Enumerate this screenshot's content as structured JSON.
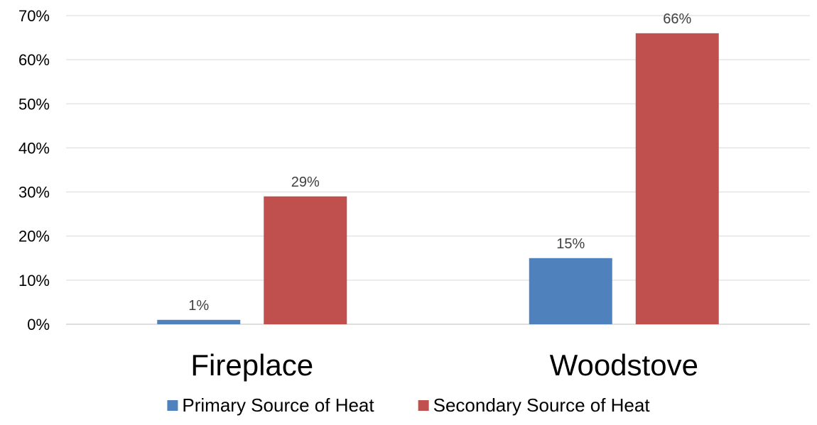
{
  "chart_data": {
    "type": "bar",
    "title": "",
    "xlabel": "",
    "ylabel": "",
    "categories": [
      "Fireplace",
      "Woodstove"
    ],
    "series": [
      {
        "name": "Primary Source of Heat",
        "color": "#4F81BD",
        "values": [
          1,
          15
        ],
        "labels": [
          "1%",
          "15%"
        ]
      },
      {
        "name": "Secondary Source of Heat",
        "color": "#C0504D",
        "values": [
          29,
          66
        ],
        "labels": [
          "29%",
          "66%"
        ]
      }
    ],
    "ylim": [
      0,
      70
    ],
    "yticks": [
      0,
      10,
      20,
      30,
      40,
      50,
      60,
      70
    ],
    "ytick_labels": [
      "0%",
      "10%",
      "20%",
      "30%",
      "40%",
      "50%",
      "60%",
      "70%"
    ],
    "grid": true,
    "legend": "bottom"
  }
}
